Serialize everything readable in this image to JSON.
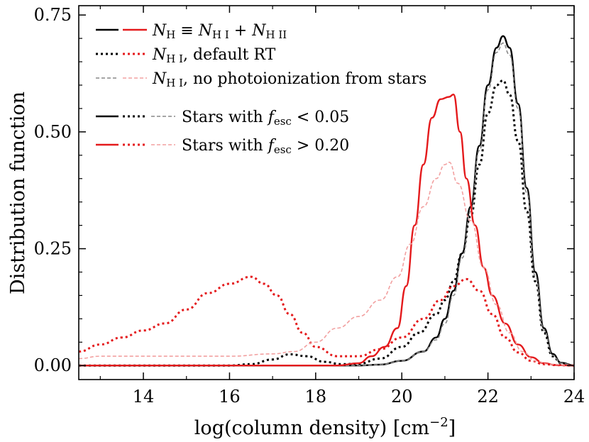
{
  "chart_data": {
    "type": "line",
    "title": "",
    "xlabel": "log(column density) [cm",
    "xlabel_sup": "−2",
    "xlabel_close": "]",
    "ylabel": "Distribution function",
    "xlim": [
      12.5,
      24
    ],
    "ylim": [
      -0.03,
      0.77
    ],
    "x_ticks": [
      14,
      16,
      18,
      20,
      22,
      24
    ],
    "x_tick_labels": [
      "14",
      "16",
      "18",
      "20",
      "22",
      "24"
    ],
    "y_ticks": [
      0,
      0.25,
      0.5,
      0.75
    ],
    "y_tick_labels": [
      "0.00",
      "0.25",
      "0.50",
      "0.75"
    ],
    "colors": {
      "low_fesc": "#000000",
      "high_fesc": "#e41a1c",
      "low_fesc_light": "#888888",
      "high_fesc_light": "#f2a0a0"
    },
    "legend": {
      "position": "top-left",
      "entries": [
        {
          "label": "N_H ≡ N_HI + N_HII",
          "style": "solid"
        },
        {
          "label": "N_HI, default RT",
          "style": "dotted"
        },
        {
          "label": "N_HI, no photoionization from stars",
          "style": "dashed"
        },
        {
          "label": "Stars with f_esc < 0.05",
          "color": "black"
        },
        {
          "label": "Stars with f_esc > 0.20",
          "color": "red"
        }
      ]
    },
    "legend_text": {
      "nh_total": {
        "N": "N",
        "H": "H",
        "equiv": " ≡ ",
        "HI": "H I",
        "plus": " + ",
        "HII": "H II"
      },
      "nhi_default": {
        "N": "N",
        "HI": "H I",
        "rest": ", default RT"
      },
      "nhi_nophoto": {
        "N": "N",
        "HI": "H I",
        "rest": ", no photoionization from stars"
      },
      "low_fesc": {
        "prefix": "Stars with ",
        "f": "f",
        "sub": "esc",
        "rest": " < 0.05"
      },
      "high_fesc": {
        "prefix": "Stars with ",
        "f": "f",
        "sub": "esc",
        "rest": " > 0.20"
      }
    },
    "series": [
      {
        "name": "N_H, Stars with f_esc < 0.05",
        "color": "#000000",
        "dash": "solid",
        "width": 2.4,
        "x": [
          12.5,
          18.0,
          19.0,
          19.5,
          20.0,
          20.5,
          20.8,
          21.0,
          21.2,
          21.4,
          21.6,
          21.8,
          22.0,
          22.2,
          22.35,
          22.5,
          22.7,
          22.9,
          23.1,
          23.3,
          23.5,
          23.7,
          24.0
        ],
        "values": [
          0,
          0,
          0,
          0.002,
          0.01,
          0.03,
          0.06,
          0.1,
          0.16,
          0.24,
          0.34,
          0.47,
          0.6,
          0.68,
          0.705,
          0.68,
          0.56,
          0.38,
          0.2,
          0.08,
          0.025,
          0.006,
          0
        ]
      },
      {
        "name": "N_HI default RT, Stars with f_esc < 0.05",
        "color": "#000000",
        "dash": "dotted",
        "width": 3,
        "x": [
          12.5,
          16.0,
          16.5,
          17.0,
          17.4,
          17.8,
          18.2,
          18.6,
          19.0,
          19.5,
          20.0,
          20.4,
          20.8,
          21.0,
          21.2,
          21.4,
          21.6,
          21.8,
          22.0,
          22.2,
          22.35,
          22.5,
          22.7,
          22.9,
          23.1,
          23.3,
          23.5,
          23.7,
          24.0
        ],
        "values": [
          0,
          0,
          0.003,
          0.013,
          0.024,
          0.02,
          0.008,
          0.003,
          0.004,
          0.015,
          0.04,
          0.07,
          0.11,
          0.14,
          0.18,
          0.24,
          0.32,
          0.43,
          0.54,
          0.6,
          0.61,
          0.58,
          0.48,
          0.33,
          0.18,
          0.07,
          0.02,
          0.005,
          0
        ]
      },
      {
        "name": "N_HI no photoionization, Stars with f_esc < 0.05",
        "color": "#888888",
        "dash": "dashed",
        "width": 1.6,
        "x": [
          12.5,
          18.0,
          19.0,
          19.5,
          20.0,
          20.5,
          20.8,
          21.0,
          21.2,
          21.4,
          21.6,
          21.8,
          22.0,
          22.2,
          22.35,
          22.5,
          22.7,
          22.9,
          23.1,
          23.3,
          23.5,
          23.7,
          24.0
        ],
        "values": [
          0,
          0,
          0,
          0.002,
          0.01,
          0.03,
          0.055,
          0.09,
          0.15,
          0.23,
          0.33,
          0.46,
          0.59,
          0.67,
          0.69,
          0.665,
          0.55,
          0.37,
          0.19,
          0.075,
          0.022,
          0.005,
          0
        ]
      },
      {
        "name": "N_H, Stars with f_esc > 0.20",
        "color": "#e41a1c",
        "dash": "solid",
        "width": 2.4,
        "x": [
          12.5,
          18.5,
          19.0,
          19.3,
          19.6,
          19.9,
          20.1,
          20.3,
          20.5,
          20.7,
          20.9,
          21.1,
          21.2,
          21.35,
          21.5,
          21.7,
          21.9,
          22.1,
          22.4,
          22.7,
          23.0,
          23.3,
          23.6,
          24.0
        ],
        "values": [
          0,
          0,
          0.005,
          0.02,
          0.04,
          0.08,
          0.17,
          0.3,
          0.43,
          0.53,
          0.57,
          0.575,
          0.58,
          0.5,
          0.4,
          0.3,
          0.21,
          0.15,
          0.09,
          0.045,
          0.018,
          0.005,
          0.001,
          0
        ]
      },
      {
        "name": "N_HI default RT, Stars with f_esc > 0.20",
        "color": "#e41a1c",
        "dash": "dotted",
        "width": 3,
        "x": [
          12.5,
          13.0,
          13.5,
          14.0,
          14.5,
          15.0,
          15.5,
          16.0,
          16.5,
          16.8,
          17.1,
          17.4,
          17.7,
          18.0,
          18.5,
          19.0,
          19.5,
          20.0,
          20.5,
          20.9,
          21.2,
          21.5,
          21.8,
          22.1,
          22.4,
          22.7,
          23.0,
          23.3,
          23.6,
          24.0
        ],
        "values": [
          0.03,
          0.045,
          0.06,
          0.075,
          0.09,
          0.12,
          0.155,
          0.175,
          0.19,
          0.175,
          0.15,
          0.11,
          0.07,
          0.04,
          0.02,
          0.02,
          0.035,
          0.06,
          0.1,
          0.14,
          0.17,
          0.185,
          0.16,
          0.11,
          0.06,
          0.028,
          0.01,
          0.003,
          0.001,
          0
        ]
      },
      {
        "name": "N_HI no photoionization, Stars with f_esc > 0.20",
        "color": "#f2a0a0",
        "dash": "dashed",
        "width": 1.6,
        "x": [
          12.5,
          13.0,
          14.0,
          15.0,
          16.0,
          17.0,
          17.5,
          18.0,
          18.5,
          19.0,
          19.5,
          19.9,
          20.2,
          20.5,
          20.8,
          21.0,
          21.1,
          21.3,
          21.6,
          21.9,
          22.2,
          22.5,
          22.8,
          23.1,
          23.4,
          24.0
        ],
        "values": [
          0.015,
          0.02,
          0.02,
          0.02,
          0.02,
          0.025,
          0.03,
          0.05,
          0.08,
          0.105,
          0.14,
          0.19,
          0.26,
          0.34,
          0.4,
          0.43,
          0.435,
          0.39,
          0.31,
          0.21,
          0.13,
          0.07,
          0.03,
          0.01,
          0.003,
          0
        ]
      }
    ]
  }
}
